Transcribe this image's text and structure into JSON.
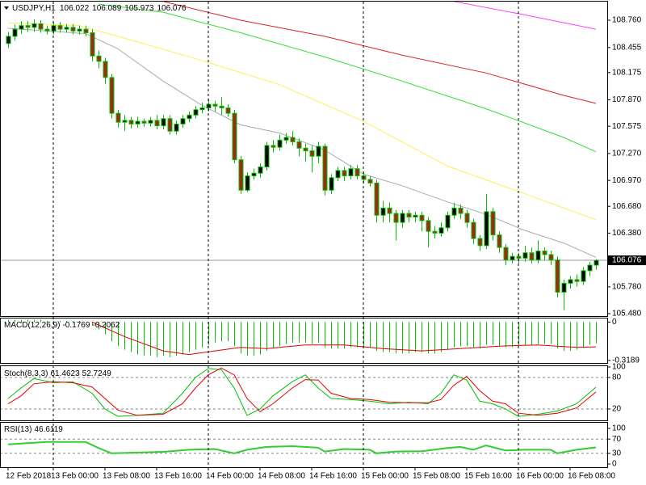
{
  "chart_data": [
    {
      "type": "candlestick",
      "title": "USDJPY,H1",
      "up_color": "#000000",
      "down_color": "#9b2d0f",
      "wick_color": "#00c000",
      "xlim": [
        -1.25,
        92.75
      ],
      "xticks": [
        {
          "value": 0,
          "label": "12 Feb 2018"
        },
        {
          "value": 7,
          "label": "13 Feb 00:00"
        },
        {
          "value": 15,
          "label": "13 Feb 08:00"
        },
        {
          "value": 23,
          "label": "13 Feb 16:00"
        },
        {
          "value": 31,
          "label": "14 Feb 00:00"
        },
        {
          "value": 39,
          "label": "14 Feb 08:00"
        },
        {
          "value": 47,
          "label": "14 Feb 16:00"
        },
        {
          "value": 55,
          "label": "15 Feb 00:00"
        },
        {
          "value": 63,
          "label": "15 Feb 08:00"
        },
        {
          "value": 71,
          "label": "15 Feb 16:00"
        },
        {
          "value": 79,
          "label": "16 Feb 00:00"
        },
        {
          "value": 87,
          "label": "16 Feb 08:00"
        }
      ],
      "ylim": [
        105.453,
        108.968
      ],
      "yticks": [
        {
          "value": 108.76,
          "label": "108.760"
        },
        {
          "value": 108.455,
          "label": "108.455"
        },
        {
          "value": 108.175,
          "label": "108.175"
        },
        {
          "value": 107.87,
          "label": "107.870"
        },
        {
          "value": 107.575,
          "label": "107.575"
        },
        {
          "value": 107.27,
          "label": "107.270"
        },
        {
          "value": 106.97,
          "label": "106.970"
        },
        {
          "value": 106.68,
          "label": "106.680"
        },
        {
          "value": 106.38,
          "label": "106.380"
        },
        {
          "value": 105.78,
          "label": "105.780"
        },
        {
          "value": 105.48,
          "label": "105.480"
        }
      ],
      "open": [
        108.5,
        108.58,
        108.66,
        108.7,
        108.68,
        108.72,
        108.66,
        108.64,
        108.7,
        108.66,
        108.68,
        108.64,
        108.66,
        108.62,
        108.36,
        108.3,
        108.12,
        107.72,
        107.62,
        107.64,
        107.6,
        107.63,
        107.61,
        107.64,
        107.58,
        107.66,
        107.52,
        107.6,
        107.66,
        107.7,
        107.76,
        107.78,
        107.82,
        107.8,
        107.78,
        107.72,
        107.2,
        106.86,
        107.02,
        107.05,
        107.12,
        107.36,
        107.34,
        107.42,
        107.45,
        107.4,
        107.33,
        107.3,
        107.24,
        107.35,
        106.86,
        107.0,
        107.08,
        107.02,
        107.1,
        107.02,
        106.98,
        106.94,
        106.58,
        106.66,
        106.6,
        106.5,
        106.6,
        106.56,
        106.58,
        106.52,
        106.4,
        106.38,
        106.44,
        106.58,
        106.66,
        106.6,
        106.5,
        106.32,
        106.24,
        106.62,
        106.36,
        106.22,
        106.08,
        106.12,
        106.1,
        106.16,
        106.08,
        106.18,
        106.14,
        106.08,
        105.72,
        105.82,
        105.86,
        105.84,
        105.96,
        106.022
      ],
      "high": [
        108.63,
        108.71,
        108.75,
        108.75,
        108.77,
        108.76,
        108.7,
        108.74,
        108.74,
        108.72,
        108.72,
        108.7,
        108.7,
        108.66,
        108.42,
        108.34,
        108.16,
        107.76,
        107.7,
        107.68,
        107.68,
        107.66,
        107.68,
        107.7,
        107.7,
        107.7,
        107.64,
        107.7,
        107.74,
        107.8,
        107.84,
        107.88,
        107.86,
        107.9,
        107.82,
        107.76,
        107.24,
        107.06,
        107.1,
        107.16,
        107.4,
        107.42,
        107.48,
        107.5,
        107.52,
        107.44,
        107.38,
        107.36,
        107.4,
        107.38,
        107.04,
        107.12,
        107.12,
        107.14,
        107.14,
        107.06,
        107.02,
        106.98,
        106.74,
        106.72,
        106.64,
        106.64,
        106.64,
        106.62,
        106.62,
        106.56,
        106.46,
        106.5,
        106.62,
        106.72,
        106.7,
        106.64,
        106.54,
        106.36,
        106.82,
        106.66,
        106.4,
        106.26,
        106.16,
        106.16,
        106.24,
        106.22,
        106.3,
        106.22,
        106.18,
        106.12,
        105.86,
        105.9,
        105.92,
        106.0,
        106.06,
        106.089
      ],
      "low": [
        108.45,
        108.53,
        108.61,
        108.63,
        108.63,
        108.62,
        108.6,
        108.6,
        108.62,
        108.62,
        108.6,
        108.6,
        108.58,
        108.3,
        108.22,
        108.05,
        107.66,
        107.56,
        107.52,
        107.55,
        107.56,
        107.57,
        107.57,
        107.54,
        107.54,
        107.48,
        107.48,
        107.56,
        107.62,
        107.66,
        107.72,
        107.74,
        107.74,
        107.7,
        107.68,
        107.16,
        106.82,
        106.84,
        106.98,
        107.0,
        107.08,
        107.28,
        107.3,
        107.38,
        107.36,
        107.24,
        107.18,
        107.06,
        107.16,
        106.8,
        106.82,
        106.96,
        106.96,
        106.98,
        106.98,
        106.94,
        106.9,
        106.5,
        106.5,
        106.5,
        106.3,
        106.44,
        106.5,
        106.5,
        106.4,
        106.22,
        106.32,
        106.34,
        106.4,
        106.54,
        106.54,
        106.44,
        106.26,
        106.18,
        106.2,
        106.3,
        106.16,
        106.02,
        106.04,
        106.04,
        106.06,
        106.04,
        106.04,
        106.08,
        106.02,
        105.66,
        105.52,
        105.76,
        105.78,
        105.8,
        105.9,
        105.973
      ],
      "close": [
        108.58,
        108.66,
        108.7,
        108.68,
        108.72,
        108.66,
        108.64,
        108.7,
        108.66,
        108.68,
        108.64,
        108.66,
        108.62,
        108.36,
        108.3,
        108.12,
        107.72,
        107.62,
        107.64,
        107.6,
        107.63,
        107.61,
        107.64,
        107.58,
        107.66,
        107.52,
        107.6,
        107.66,
        107.7,
        107.76,
        107.78,
        107.82,
        107.8,
        107.78,
        107.72,
        107.2,
        106.86,
        107.02,
        107.05,
        107.12,
        107.36,
        107.34,
        107.42,
        107.45,
        107.4,
        107.33,
        107.3,
        107.24,
        107.35,
        106.86,
        107.0,
        107.08,
        107.02,
        107.1,
        107.02,
        106.98,
        106.94,
        106.58,
        106.66,
        106.6,
        106.5,
        106.6,
        106.56,
        106.58,
        106.52,
        106.4,
        106.38,
        106.44,
        106.58,
        106.66,
        106.6,
        106.5,
        106.32,
        106.24,
        106.62,
        106.36,
        106.22,
        106.08,
        106.12,
        106.1,
        106.16,
        106.08,
        106.18,
        106.14,
        106.08,
        105.72,
        105.82,
        105.86,
        105.84,
        105.96,
        106.022,
        106.076
      ],
      "overlays": [
        {
          "color": "#ff40ff",
          "x": [
            69,
            80,
            91
          ],
          "values": [
            108.97,
            108.82,
            108.66
          ]
        },
        {
          "color": "#e02020",
          "x": [
            24,
            36,
            49,
            61,
            74,
            86,
            91
          ],
          "values": [
            108.97,
            108.76,
            108.58,
            108.37,
            108.17,
            107.92,
            107.83
          ]
        },
        {
          "color": "#33dd33",
          "x": [
            14,
            24,
            36,
            49,
            61,
            74,
            86,
            91
          ],
          "values": [
            108.94,
            108.85,
            108.62,
            108.35,
            108.08,
            107.77,
            107.45,
            107.29
          ]
        },
        {
          "color": "#ffee55",
          "x": [
            0,
            11,
            17,
            30,
            42,
            55,
            68,
            80,
            91
          ],
          "values": [
            108.73,
            108.7,
            108.58,
            108.31,
            108.04,
            107.63,
            107.13,
            106.82,
            106.53
          ]
        },
        {
          "color": "#aaaaaa",
          "x": [
            0,
            12,
            17,
            24,
            30,
            36,
            42,
            49,
            55,
            61,
            68,
            74,
            80,
            86,
            91
          ],
          "values": [
            108.67,
            108.61,
            108.44,
            108.08,
            107.81,
            107.59,
            107.5,
            107.31,
            107.04,
            106.91,
            106.73,
            106.59,
            106.41,
            106.27,
            106.11
          ]
        }
      ]
    },
    {
      "type": "macd",
      "title": "MACD(12,26,9)",
      "ylim": [
        -0.34,
        0.03
      ],
      "yticks": [
        0,
        -0.3189
      ],
      "histogram": {
        "color": "#00c000",
        "values": [
          0.02,
          0.02,
          0.02,
          0.02,
          0.02,
          0.02,
          0.01,
          0.01,
          0.01,
          0.01,
          0.01,
          0.01,
          0.0,
          -0.03,
          -0.06,
          -0.1,
          -0.16,
          -0.2,
          -0.23,
          -0.25,
          -0.27,
          -0.28,
          -0.28,
          -0.29,
          -0.28,
          -0.29,
          -0.28,
          -0.27,
          -0.25,
          -0.23,
          -0.21,
          -0.19,
          -0.17,
          -0.16,
          -0.16,
          -0.2,
          -0.26,
          -0.28,
          -0.28,
          -0.27,
          -0.24,
          -0.22,
          -0.2,
          -0.18,
          -0.17,
          -0.17,
          -0.17,
          -0.18,
          -0.17,
          -0.21,
          -0.22,
          -0.22,
          -0.22,
          -0.21,
          -0.21,
          -0.21,
          -0.21,
          -0.24,
          -0.25,
          -0.25,
          -0.26,
          -0.26,
          -0.26,
          -0.25,
          -0.25,
          -0.26,
          -0.26,
          -0.25,
          -0.23,
          -0.21,
          -0.2,
          -0.2,
          -0.21,
          -0.22,
          -0.19,
          -0.19,
          -0.2,
          -0.21,
          -0.21,
          -0.2,
          -0.19,
          -0.19,
          -0.18,
          -0.18,
          -0.18,
          -0.22,
          -0.24,
          -0.24,
          -0.23,
          -0.21,
          -0.19,
          -0.1769
        ]
      },
      "signal": {
        "color": "#e00000",
        "x": [
          13,
          18,
          24,
          28,
          32,
          36,
          40,
          46,
          52,
          58,
          64,
          70,
          76,
          82,
          88,
          91
        ],
        "values": [
          0.0,
          -0.12,
          -0.24,
          -0.27,
          -0.24,
          -0.21,
          -0.22,
          -0.19,
          -0.19,
          -0.22,
          -0.24,
          -0.22,
          -0.2,
          -0.19,
          -0.21,
          -0.2062
        ]
      }
    },
    {
      "type": "line",
      "title": "Stoch(8,3,3)",
      "ylim": [
        -1.5,
        101.5
      ],
      "yticks": [
        100,
        80,
        20
      ],
      "levels": [
        80,
        20
      ],
      "series": [
        {
          "color": "#00c000",
          "x": [
            0,
            2,
            4,
            7,
            10,
            13,
            15,
            17,
            20,
            24,
            27,
            29,
            31,
            33,
            35,
            37,
            39,
            41,
            44,
            46,
            48,
            50,
            53,
            56,
            59,
            62,
            65,
            67,
            69,
            71,
            73,
            75,
            77,
            79,
            82,
            85,
            88,
            91
          ],
          "values": [
            40,
            60,
            78,
            70,
            72,
            50,
            20,
            6,
            8,
            12,
            50,
            80,
            97,
            95,
            60,
            8,
            20,
            45,
            72,
            85,
            60,
            40,
            38,
            35,
            30,
            33,
            30,
            50,
            85,
            75,
            35,
            30,
            20,
            6,
            10,
            16,
            30,
            61.4623
          ]
        },
        {
          "color": "#e00000",
          "x": [
            0,
            2,
            4,
            7,
            10,
            13,
            15,
            17,
            20,
            24,
            27,
            29,
            31,
            33,
            35,
            37,
            39,
            41,
            44,
            46,
            48,
            50,
            53,
            56,
            59,
            62,
            65,
            67,
            69,
            71,
            73,
            75,
            77,
            79,
            82,
            85,
            88,
            91
          ],
          "values": [
            30,
            45,
            68,
            72,
            70,
            62,
            40,
            18,
            8,
            10,
            30,
            60,
            85,
            98,
            85,
            40,
            15,
            30,
            60,
            76,
            75,
            50,
            40,
            38,
            33,
            32,
            32,
            38,
            65,
            82,
            55,
            35,
            30,
            12,
            8,
            12,
            22,
            52.7249
          ]
        }
      ]
    },
    {
      "type": "line",
      "title": "RSI(13)",
      "ylim": [
        -9.1,
        115.9
      ],
      "yticks": [
        100,
        70,
        30,
        0
      ],
      "levels": [
        70,
        30
      ],
      "series": [
        {
          "color": "#33cc33",
          "width": 2,
          "x": [
            0,
            6,
            12,
            14,
            16,
            20,
            24,
            28,
            32,
            35,
            37,
            40,
            44,
            48,
            49,
            52,
            56,
            57,
            60,
            64,
            68,
            70,
            72,
            74,
            77,
            80,
            84,
            85,
            88,
            91
          ],
          "values": [
            55,
            62,
            62,
            45,
            30,
            32,
            34,
            40,
            42,
            30,
            40,
            48,
            50,
            46,
            35,
            42,
            40,
            30,
            35,
            36,
            45,
            48,
            40,
            52,
            38,
            40,
            40,
            30,
            40,
            46.6119
          ]
        }
      ]
    }
  ]
}
